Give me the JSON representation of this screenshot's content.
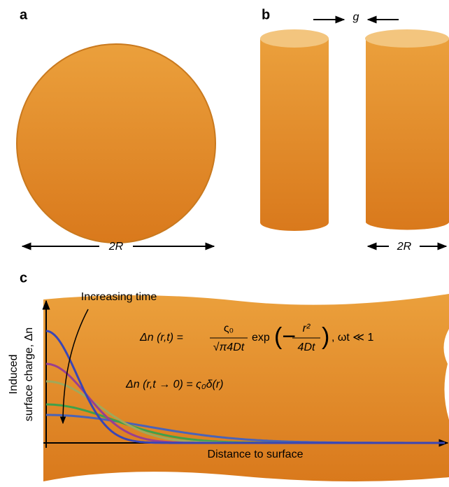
{
  "panel_a": {
    "label": "a",
    "dimension": "2R"
  },
  "panel_b": {
    "label": "b",
    "gap": "g",
    "dimension": "2R"
  },
  "panel_c": {
    "label": "c",
    "annotation": "Increasing time",
    "y_axis_label": [
      "Induced",
      "surface charge, Δn"
    ],
    "x_axis_label": "Distance to surface",
    "equation_1": {
      "lhs": "Δn (r,t) =",
      "numerator": "ς₀",
      "denominator": "√π4Dt",
      "exp": "exp",
      "exp_numerator": "r²",
      "exp_denominator": "4Dt",
      "condition": ", ωt ≪ 1"
    },
    "equation_2": "Δn (r,t → 0) = ς₀δ(r)"
  }
}
